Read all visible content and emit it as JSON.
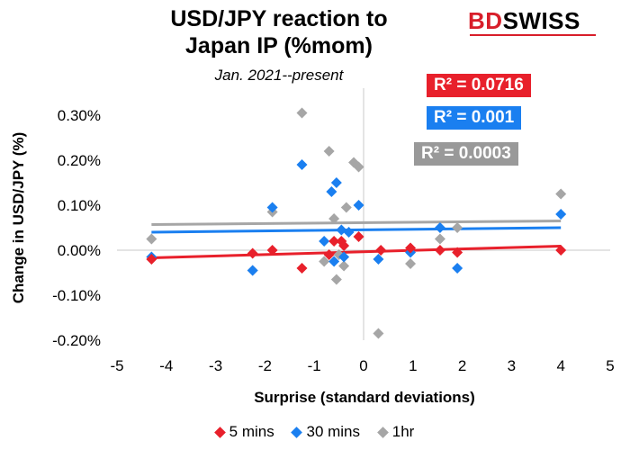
{
  "header": {
    "title_line1": "USD/JPY reaction to",
    "title_line2": "Japan IP (%mom)",
    "subtitle": "Jan. 2021--present",
    "logo_part1": "BD",
    "logo_part2": "SWISS"
  },
  "colors": {
    "five_min": "#e8202b",
    "thirty_min": "#1a7ff0",
    "one_hr": "#a6a6a6",
    "r2_five_bg": "#e8202b",
    "r2_thirty_bg": "#1a7ff0",
    "r2_one_bg": "#999999"
  },
  "r2_labels": {
    "five_min": "R² = 0.0716",
    "thirty_min": "R² = 0.001",
    "one_hr": "R² = 0.0003"
  },
  "chart_data": {
    "type": "scatter",
    "xlabel": "Surprise (standard deviations)",
    "ylabel": "Change in USD/JPY (%)",
    "xlim": [
      -5,
      5
    ],
    "ylim": [
      -0.2,
      0.35
    ],
    "xticks": [
      "-5",
      "-4",
      "-3",
      "-2",
      "-1",
      "0",
      "1",
      "2",
      "3",
      "4",
      "5"
    ],
    "yticks": [
      "0.30%",
      "0.20%",
      "0.10%",
      "0.00%",
      "-0.10%",
      "-0.20%"
    ],
    "ytick_values": [
      0.3,
      0.2,
      0.1,
      0.0,
      -0.1,
      -0.2
    ],
    "series": [
      {
        "name": "5 mins",
        "color": "#e8202b",
        "points": [
          [
            -4.3,
            -0.02
          ],
          [
            -2.25,
            -0.007
          ],
          [
            -1.85,
            0
          ],
          [
            -1.25,
            -0.04
          ],
          [
            -0.7,
            -0.01
          ],
          [
            -0.6,
            0.02
          ],
          [
            -0.45,
            0.02
          ],
          [
            -0.4,
            0.01
          ],
          [
            -0.1,
            0.03
          ],
          [
            0.35,
            0
          ],
          [
            0.95,
            0.005
          ],
          [
            1.55,
            0
          ],
          [
            1.9,
            -0.005
          ],
          [
            4.0,
            0
          ]
        ],
        "trend": {
          "y_at_xmin": -0.017,
          "y_at_xmax": 0.009
        }
      },
      {
        "name": "30 mins",
        "color": "#1a7ff0",
        "points": [
          [
            -4.3,
            -0.015
          ],
          [
            -2.25,
            -0.045
          ],
          [
            -1.85,
            0.095
          ],
          [
            -1.25,
            0.19
          ],
          [
            -0.8,
            0.02
          ],
          [
            -0.65,
            0.13
          ],
          [
            -0.6,
            -0.025
          ],
          [
            -0.55,
            0.15
          ],
          [
            -0.4,
            -0.015
          ],
          [
            -0.45,
            0.045
          ],
          [
            -0.3,
            0.04
          ],
          [
            -0.1,
            0.1
          ],
          [
            0.3,
            -0.02
          ],
          [
            0.95,
            -0.005
          ],
          [
            1.55,
            0.05
          ],
          [
            1.9,
            -0.04
          ],
          [
            4.0,
            0.08
          ]
        ],
        "trend": {
          "y_at_xmin": 0.04,
          "y_at_xmax": 0.05
        }
      },
      {
        "name": "1hr",
        "color": "#a6a6a6",
        "points": [
          [
            -4.3,
            0.025
          ],
          [
            -2.25,
            -0.045
          ],
          [
            -1.85,
            0.085
          ],
          [
            -1.25,
            0.305
          ],
          [
            -0.7,
            0.22
          ],
          [
            -0.6,
            0.07
          ],
          [
            -0.8,
            -0.025
          ],
          [
            -0.55,
            -0.065
          ],
          [
            -0.5,
            -0.01
          ],
          [
            -0.4,
            -0.035
          ],
          [
            -0.35,
            0.095
          ],
          [
            -0.2,
            0.195
          ],
          [
            -0.1,
            0.185
          ],
          [
            0.3,
            -0.185
          ],
          [
            0.95,
            -0.03
          ],
          [
            1.55,
            0.025
          ],
          [
            1.9,
            0.05
          ],
          [
            4.0,
            0.125
          ]
        ],
        "trend": {
          "y_at_xmin": 0.057,
          "y_at_xmax": 0.065
        }
      }
    ],
    "legend": [
      "5 mins",
      "30 mins",
      "1hr"
    ],
    "legend_position": "bottom",
    "grid": false
  }
}
